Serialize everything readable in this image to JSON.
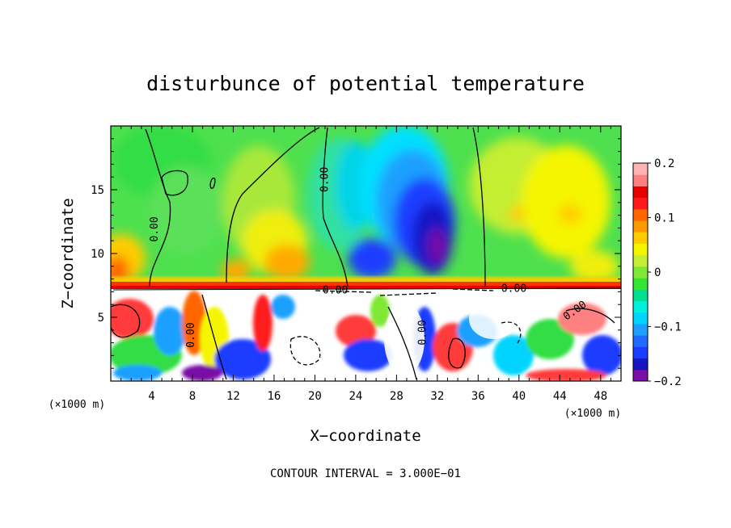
{
  "chart_data": {
    "type": "heatmap",
    "title": "disturbunce of potential temperature",
    "xlabel": "X−coordinate",
    "ylabel": "Z−coordinate",
    "x_unit": "(×1000 m)",
    "y_unit": "(×1000 m)",
    "footer": "CONTOUR INTERVAL = 3.000E−01",
    "xlim": [
      0,
      50
    ],
    "ylim": [
      0,
      20
    ],
    "x_ticks": [
      4,
      8,
      12,
      16,
      20,
      24,
      28,
      32,
      36,
      40,
      44,
      48
    ],
    "y_ticks": [
      5,
      10,
      15
    ],
    "colorbar": {
      "min": -0.2,
      "max": 0.2,
      "tick_values": [
        0.2,
        0.1,
        0,
        -0.1,
        -0.2
      ],
      "tick_labels": [
        "0.2",
        "0.1",
        "0",
        "−0.1",
        "−0.2"
      ],
      "colors": [
        "#7a0fa6",
        "#1515c4",
        "#1a3cff",
        "#1f6bff",
        "#1fa0ff",
        "#00d4ff",
        "#00f0e0",
        "#00e090",
        "#33e633",
        "#7fe833",
        "#c4ee33",
        "#f5f500",
        "#ffcc00",
        "#ff9900",
        "#ff6600",
        "#ff1a1a",
        "#e80000",
        "#ff8080",
        "#ffb3b3"
      ]
    },
    "contour_labels": [
      {
        "text": "0.00",
        "x": 4.3,
        "z": 11.9,
        "rotate": -90
      },
      {
        "text": "0.00",
        "x": 21.0,
        "z": 15.8,
        "rotate": -90
      },
      {
        "text": "0.00",
        "x": 22.0,
        "z": 7.1,
        "rotate": 0
      },
      {
        "text": "0.00",
        "x": 39.5,
        "z": 7.2,
        "rotate": 0
      },
      {
        "text": "0.00",
        "x": 45.5,
        "z": 5.5,
        "rotate": -35
      },
      {
        "text": "0.00",
        "x": 30.6,
        "z": 3.8,
        "rotate": -90
      },
      {
        "text": "0.00",
        "x": 7.9,
        "z": 3.6,
        "rotate": -90
      }
    ]
  }
}
